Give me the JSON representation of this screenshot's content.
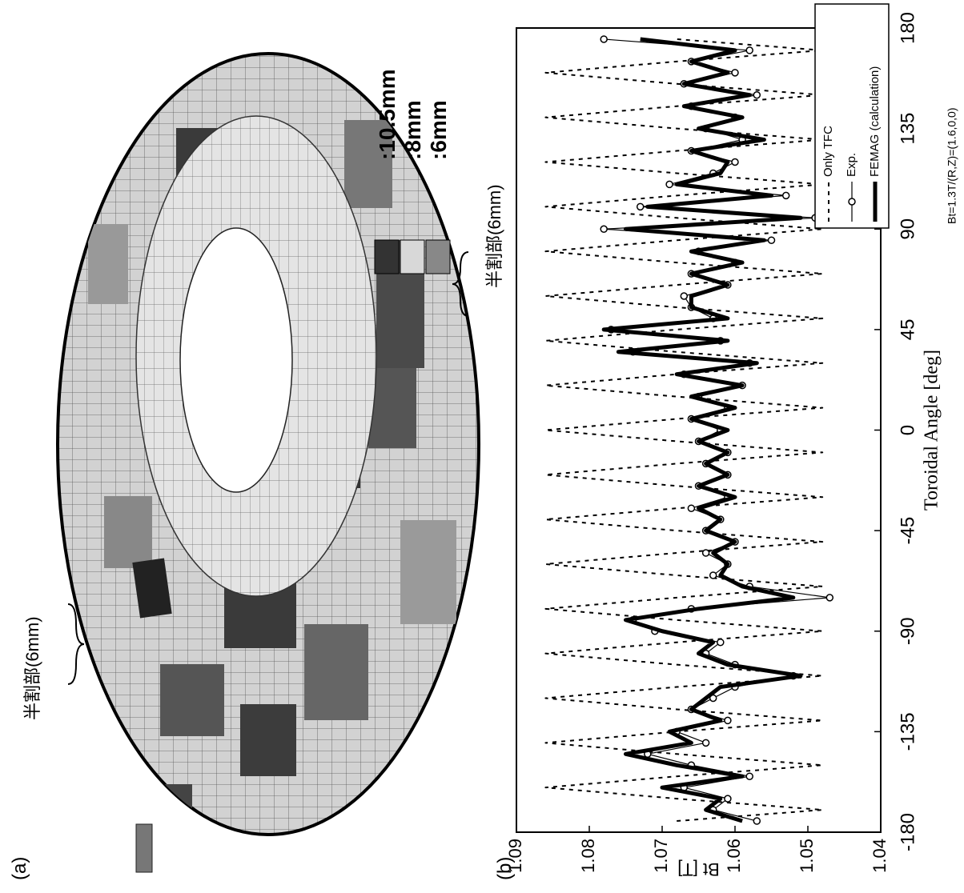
{
  "figure_a": {
    "label": "(a)",
    "legend": [
      ":10.5mm",
      ":8mm",
      ":6mm"
    ],
    "callouts": [
      "半割部(6mm)",
      "半割部(6mm)"
    ]
  },
  "figure_b": {
    "label": "(b)"
  },
  "chart_data": {
    "type": "line",
    "xlabel": "Toroidal Angle [deg]",
    "ylabel": "Bt [T]",
    "annotation": "Bt=1.3T/(R,Z)=(1.6,0,0)",
    "xlim": [
      -180,
      180
    ],
    "xticks": [
      -180,
      -135,
      -90,
      -45,
      0,
      45,
      90,
      135,
      180
    ],
    "ylim": [
      1.04,
      1.09
    ],
    "yticks": [
      1.04,
      1.05,
      1.06,
      1.07,
      1.08,
      1.09
    ],
    "legend": "lower right",
    "x": [
      -175,
      -170,
      -165,
      -160,
      -155,
      -150,
      -145,
      -140,
      -135,
      -130,
      -125,
      -120,
      -115,
      -110,
      -105,
      -100,
      -95,
      -90,
      -85,
      -80,
      -75,
      -70,
      -65,
      -60,
      -55,
      -50,
      -45,
      -40,
      -35,
      -30,
      -25,
      -20,
      -15,
      -10,
      -5,
      0,
      5,
      10,
      15,
      20,
      25,
      30,
      35,
      40,
      45,
      50,
      55,
      60,
      65,
      70,
      75,
      80,
      85,
      90,
      95,
      100,
      105,
      110,
      115,
      120,
      125,
      130,
      135,
      140,
      145,
      150,
      155,
      160,
      165,
      170,
      175
    ],
    "series": [
      {
        "name": "Only TFC",
        "color": "#000000",
        "style": "dashed",
        "values": [
          1.068,
          1.048,
          1.068,
          1.086,
          1.068,
          1.048,
          1.068,
          1.086,
          1.068,
          1.048,
          1.068,
          1.086,
          1.068,
          1.048,
          1.068,
          1.086,
          1.068,
          1.048,
          1.068,
          1.086,
          1.068,
          1.048,
          1.068,
          1.086,
          1.068,
          1.048,
          1.068,
          1.086,
          1.068,
          1.048,
          1.068,
          1.086,
          1.068,
          1.048,
          1.068,
          1.086,
          1.068,
          1.048,
          1.068,
          1.086,
          1.068,
          1.048,
          1.068,
          1.086,
          1.068,
          1.048,
          1.068,
          1.086,
          1.068,
          1.048,
          1.068,
          1.086,
          1.068,
          1.048,
          1.068,
          1.086,
          1.068,
          1.048,
          1.068,
          1.086,
          1.068,
          1.048,
          1.068,
          1.086,
          1.068,
          1.048,
          1.068,
          1.086,
          1.068,
          1.048,
          1.068
        ]
      },
      {
        "name": "Exp.",
        "color": "#000000",
        "style": "marker",
        "values": [
          1.057,
          1.063,
          1.061,
          1.067,
          1.058,
          1.066,
          1.072,
          1.064,
          1.068,
          1.061,
          1.066,
          1.063,
          1.06,
          1.052,
          1.06,
          1.064,
          1.062,
          1.071,
          1.074,
          1.066,
          1.047,
          1.058,
          1.063,
          1.061,
          1.064,
          1.06,
          1.064,
          1.062,
          1.066,
          1.061,
          1.065,
          1.061,
          1.064,
          1.061,
          1.065,
          1.062,
          1.066,
          1.061,
          1.065,
          1.059,
          1.067,
          1.058,
          1.074,
          1.062,
          1.077,
          1.063,
          1.066,
          1.067,
          1.061,
          1.066,
          1.06,
          1.065,
          1.055,
          1.078,
          1.049,
          1.073,
          1.053,
          1.069,
          1.063,
          1.06,
          1.066,
          1.059,
          1.064,
          1.06,
          1.066,
          1.057,
          1.067,
          1.06,
          1.066,
          1.058,
          1.078
        ]
      },
      {
        "name": "FEMAG (calculation)",
        "color": "#000000",
        "style": "thick",
        "values": [
          1.059,
          1.064,
          1.062,
          1.07,
          1.059,
          1.068,
          1.075,
          1.066,
          1.069,
          1.062,
          1.066,
          1.064,
          1.062,
          1.051,
          1.061,
          1.065,
          1.063,
          1.07,
          1.075,
          1.065,
          1.052,
          1.059,
          1.062,
          1.061,
          1.063,
          1.06,
          1.064,
          1.062,
          1.065,
          1.06,
          1.065,
          1.061,
          1.064,
          1.061,
          1.065,
          1.061,
          1.066,
          1.06,
          1.066,
          1.059,
          1.068,
          1.057,
          1.076,
          1.061,
          1.078,
          1.061,
          1.066,
          1.066,
          1.061,
          1.066,
          1.059,
          1.066,
          1.056,
          1.075,
          1.051,
          1.072,
          1.055,
          1.068,
          1.062,
          1.061,
          1.066,
          1.056,
          1.065,
          1.059,
          1.067,
          1.058,
          1.067,
          1.061,
          1.066,
          1.06,
          1.073
        ]
      }
    ]
  }
}
